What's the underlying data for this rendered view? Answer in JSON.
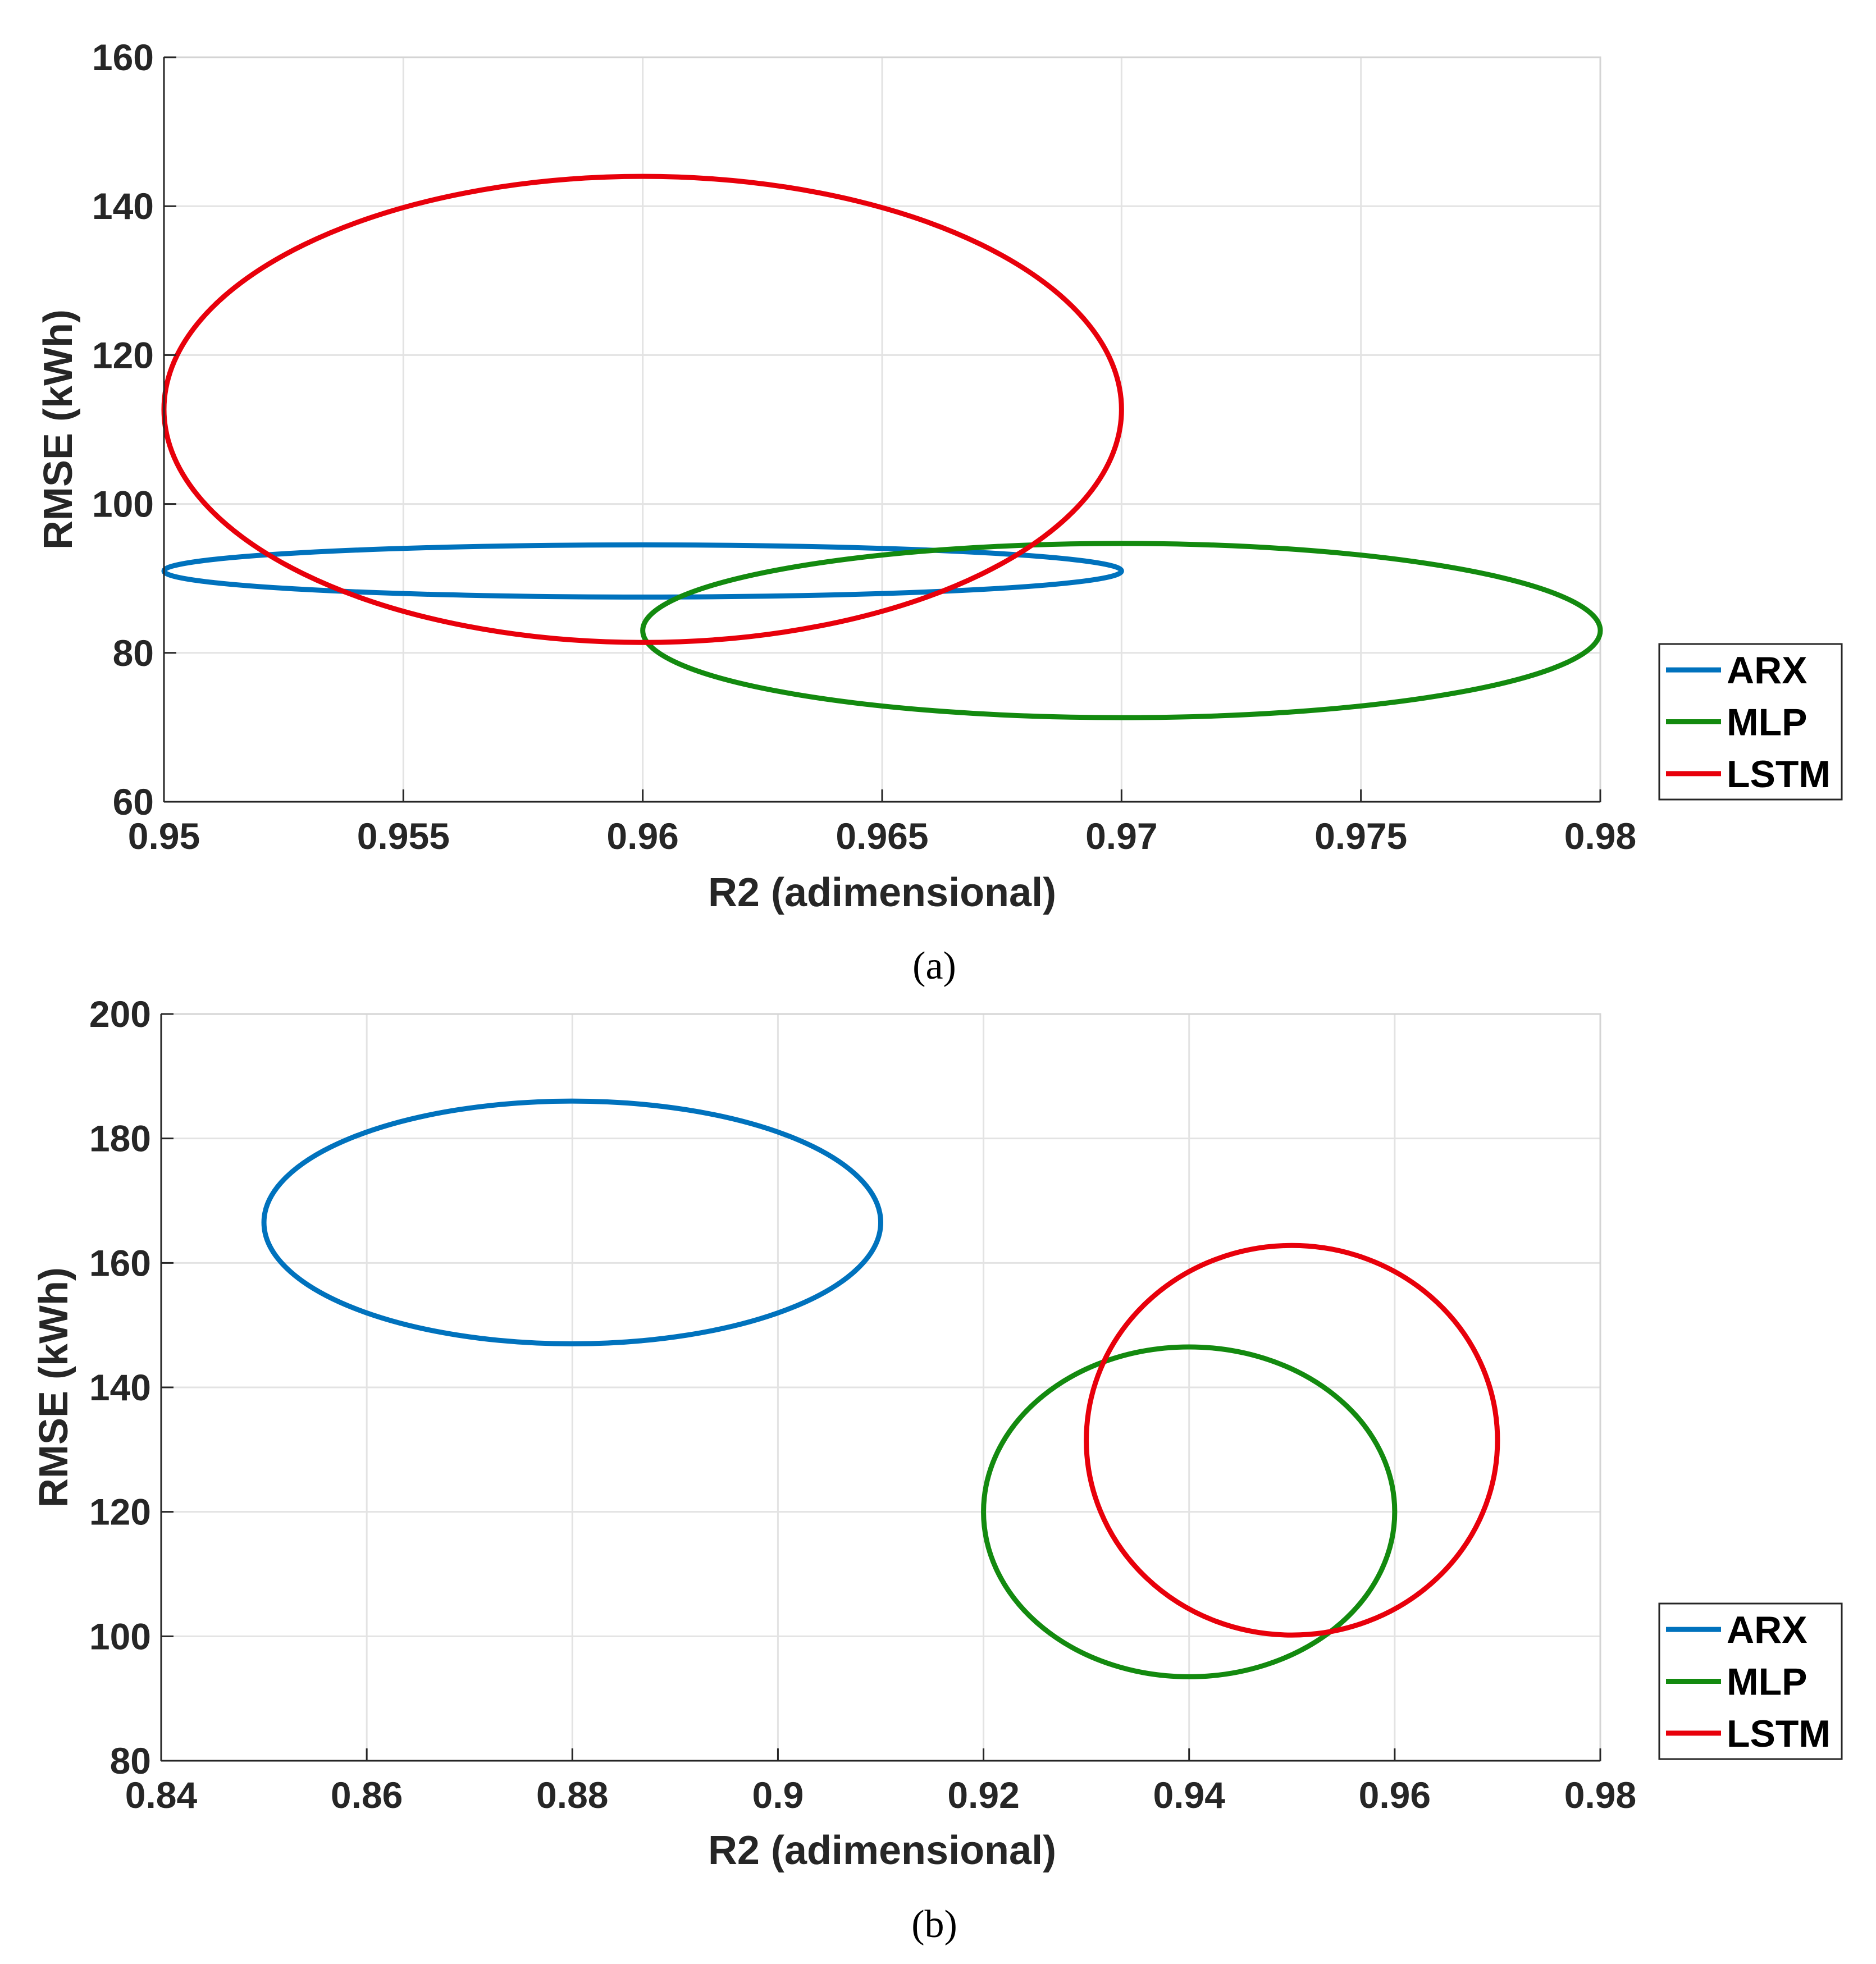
{
  "chart_data": [
    {
      "type": "ellipse",
      "panel": "a",
      "caption": "(a)",
      "xlabel": "R2 (adimensional)",
      "ylabel": "RMSE (kWh)",
      "xlim": [
        0.95,
        0.98
      ],
      "ylim": [
        60,
        160
      ],
      "xticks": [
        0.95,
        0.955,
        0.96,
        0.965,
        0.97,
        0.975,
        0.98
      ],
      "xtick_labels": [
        "0.95",
        "0.955",
        "0.96",
        "0.965",
        "0.97",
        "0.975",
        "0.98"
      ],
      "yticks": [
        60,
        80,
        100,
        120,
        140,
        160
      ],
      "ytick_labels": [
        "60",
        "80",
        "100",
        "120",
        "140",
        "160"
      ],
      "grid": true,
      "legend_position": "outside-right-bottom",
      "series": [
        {
          "name": "ARX",
          "color": "#0072BD",
          "center": [
            0.96,
            91.0
          ],
          "radius": [
            0.01,
            3.5
          ]
        },
        {
          "name": "MLP",
          "color": "#138A0F",
          "center": [
            0.97,
            83.0
          ],
          "radius": [
            0.01,
            11.7
          ]
        },
        {
          "name": "LSTM",
          "color": "#E8000B",
          "center": [
            0.96,
            112.7
          ],
          "radius": [
            0.01,
            31.3
          ]
        }
      ]
    },
    {
      "type": "ellipse",
      "panel": "b",
      "caption": "(b)",
      "xlabel": "R2 (adimensional)",
      "ylabel": "RMSE (kWh)",
      "xlim": [
        0.84,
        0.98
      ],
      "ylim": [
        80,
        200
      ],
      "xticks": [
        0.84,
        0.86,
        0.88,
        0.9,
        0.92,
        0.94,
        0.96,
        0.98
      ],
      "xtick_labels": [
        "0.84",
        "0.86",
        "0.88",
        "0.9",
        "0.92",
        "0.94",
        "0.96",
        "0.98"
      ],
      "yticks": [
        80,
        100,
        120,
        140,
        160,
        180,
        200
      ],
      "ytick_labels": [
        "80",
        "100",
        "120",
        "140",
        "160",
        "180",
        "200"
      ],
      "grid": true,
      "legend_position": "outside-right-bottom",
      "series": [
        {
          "name": "ARX",
          "color": "#0072BD",
          "center": [
            0.88,
            166.5
          ],
          "radius": [
            0.03,
            19.5
          ]
        },
        {
          "name": "MLP",
          "color": "#138A0F",
          "center": [
            0.94,
            120.0
          ],
          "radius": [
            0.02,
            26.5
          ]
        },
        {
          "name": "LSTM",
          "color": "#E8000B",
          "center": [
            0.95,
            131.5
          ],
          "radius": [
            0.02,
            31.3
          ]
        }
      ]
    }
  ]
}
